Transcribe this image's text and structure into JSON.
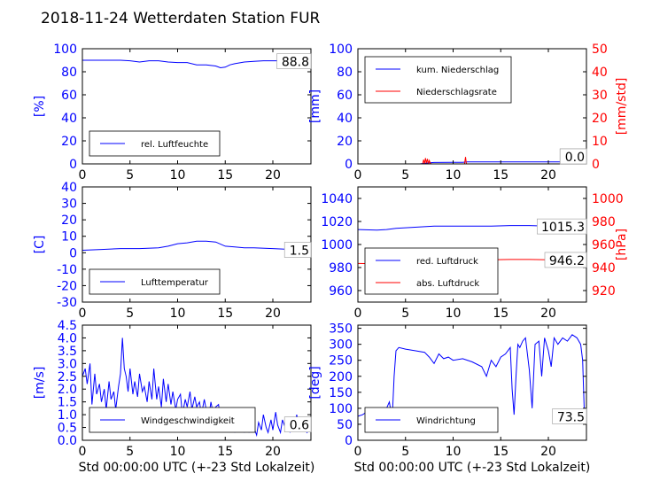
{
  "title": "2018-11-24 Wetterdaten Station FUR",
  "colors": {
    "primary": "#0000ff",
    "secondary": "#ff0000",
    "frame": "#000000"
  },
  "chart_data": [
    {
      "id": "humidity",
      "type": "line",
      "ylabel": "[%]",
      "xlabel": "",
      "xlim": [
        0,
        24
      ],
      "ylim": [
        0,
        100
      ],
      "xticks": [
        0,
        5,
        10,
        15,
        20
      ],
      "yticks": [
        0,
        20,
        40,
        60,
        80,
        100
      ],
      "last_value": "88.8",
      "legend": [
        "rel. Luftfeuchte"
      ],
      "series": [
        {
          "name": "rel. Luftfeuchte",
          "color": "#0000ff",
          "axis": "left",
          "x": [
            0,
            2,
            4,
            5,
            6,
            7,
            8,
            9,
            10,
            11,
            12,
            13,
            14,
            14.5,
            15,
            15.5,
            16,
            17,
            18,
            19,
            20,
            21,
            22,
            23,
            24
          ],
          "y": [
            90,
            90,
            90,
            89.5,
            88.5,
            89.5,
            89.5,
            88.5,
            88,
            88,
            86,
            86,
            85,
            83.5,
            84,
            86,
            87,
            88.5,
            89,
            89.5,
            89.5,
            89.5,
            89,
            89,
            88.8
          ]
        }
      ]
    },
    {
      "id": "precipitation",
      "type": "line",
      "ylabel": "[mm]",
      "ylabel_right": "[mm/std]",
      "xlabel": "",
      "xlim": [
        0,
        24
      ],
      "ylim": [
        0,
        100
      ],
      "ylim_right": [
        0,
        50
      ],
      "xticks": [
        0,
        5,
        10,
        15,
        20
      ],
      "yticks": [
        0,
        20,
        40,
        60,
        80,
        100
      ],
      "yticks_right": [
        0,
        10,
        20,
        30,
        40,
        50
      ],
      "last_value": "1.7",
      "last_value_right": "0.0",
      "legend": [
        "kum. Niederschlag",
        "Niederschlagsrate"
      ],
      "series": [
        {
          "name": "kum. Niederschlag",
          "color": "#0000ff",
          "axis": "left",
          "x": [
            0,
            6.5,
            7,
            7.5,
            8,
            11,
            11.5,
            24
          ],
          "y": [
            0,
            0,
            0.6,
            1.0,
            1.2,
            1.4,
            1.7,
            1.7
          ]
        },
        {
          "name": "Niederschlagsrate",
          "color": "#ff0000",
          "axis": "right",
          "x": [
            0,
            6.8,
            6.9,
            7.0,
            7.1,
            7.2,
            7.3,
            7.4,
            7.5,
            7.6,
            7.7,
            11.2,
            11.3,
            11.4,
            24
          ],
          "y": [
            0,
            0,
            1.8,
            0,
            2.5,
            0.3,
            2.2,
            0,
            1.5,
            0.4,
            0,
            0,
            3,
            0,
            0
          ]
        }
      ]
    },
    {
      "id": "temperature",
      "type": "line",
      "ylabel": "[C]",
      "xlabel": "",
      "xlim": [
        0,
        24
      ],
      "ylim": [
        -30,
        40
      ],
      "xticks": [
        0,
        5,
        10,
        15,
        20
      ],
      "yticks": [
        -30,
        -20,
        -10,
        0,
        10,
        20,
        30,
        40
      ],
      "last_value": "1.5",
      "legend": [
        "Lufttemperatur"
      ],
      "series": [
        {
          "name": "Lufttemperatur",
          "color": "#0000ff",
          "axis": "left",
          "x": [
            0,
            2,
            4,
            6,
            8,
            9,
            10,
            11,
            12,
            13,
            14,
            15,
            16,
            17,
            18,
            20,
            22,
            24
          ],
          "y": [
            1.5,
            2,
            2.5,
            2.5,
            3,
            4,
            5.5,
            6,
            7,
            7,
            6.5,
            4,
            3.5,
            3,
            3,
            2.5,
            2,
            1.5
          ]
        }
      ]
    },
    {
      "id": "pressure",
      "type": "line",
      "ylabel": "",
      "ylabel_right": "[hPa]",
      "xlabel": "",
      "xlim": [
        0,
        24
      ],
      "ylim": [
        950,
        1050
      ],
      "ylim_right": [
        910,
        1010
      ],
      "xticks": [
        0,
        5,
        10,
        15,
        20
      ],
      "yticks": [
        960,
        980,
        1000,
        1020,
        1040
      ],
      "yticks_right": [
        920,
        940,
        960,
        980,
        1000
      ],
      "last_value": "1015.3",
      "last_value_right": "946.2",
      "legend": [
        "red. Luftdruck",
        "abs. Luftdruck"
      ],
      "series": [
        {
          "name": "red. Luftdruck",
          "color": "#0000ff",
          "axis": "left",
          "x": [
            0,
            2,
            3,
            4,
            6,
            8,
            10,
            12,
            14,
            16,
            18,
            20,
            22,
            24
          ],
          "y": [
            1013,
            1012.5,
            1013,
            1014,
            1015,
            1016,
            1016,
            1016,
            1016,
            1016.5,
            1016.5,
            1016,
            1015.5,
            1015.3
          ]
        },
        {
          "name": "abs. Luftdruck",
          "color": "#ff0000",
          "axis": "right",
          "x": [
            0,
            2,
            3,
            4,
            6,
            8,
            10,
            12,
            14,
            16,
            18,
            20,
            22,
            24
          ],
          "y": [
            943.5,
            943.3,
            943.8,
            944.5,
            945.5,
            946.5,
            946.8,
            946.8,
            946.8,
            947,
            947,
            946.8,
            946.5,
            946.2
          ]
        }
      ]
    },
    {
      "id": "wind_speed",
      "type": "line",
      "ylabel": "[m/s]",
      "xlabel": "Std 00:00:00 UTC (+-23 Std Lokalzeit)",
      "xlim": [
        0,
        24
      ],
      "ylim": [
        0,
        4.5
      ],
      "xticks": [
        0,
        5,
        10,
        15,
        20
      ],
      "yticks": [
        0.0,
        0.5,
        1.0,
        1.5,
        2.0,
        2.5,
        3.0,
        3.5,
        4.0,
        4.5
      ],
      "last_value": "0.6",
      "legend": [
        "Windgeschwindigkeit"
      ],
      "series": [
        {
          "name": "Windgeschwindigkeit",
          "color": "#0000ff",
          "axis": "left",
          "x": [
            0,
            0.3,
            0.5,
            0.8,
            1.0,
            1.3,
            1.5,
            1.8,
            2.0,
            2.3,
            2.5,
            2.8,
            3.0,
            3.3,
            3.5,
            3.8,
            4.0,
            4.2,
            4.4,
            4.6,
            4.8,
            5.0,
            5.3,
            5.5,
            5.8,
            6.0,
            6.3,
            6.5,
            6.8,
            7.0,
            7.3,
            7.5,
            7.8,
            8.0,
            8.3,
            8.5,
            8.8,
            9.0,
            9.3,
            9.5,
            9.8,
            10.0,
            10.3,
            10.5,
            10.8,
            11.0,
            11.3,
            11.5,
            11.8,
            12.0,
            12.3,
            12.5,
            12.8,
            13.0,
            13.3,
            13.5,
            13.8,
            14.0,
            14.3,
            14.5,
            14.8,
            15.0,
            15.3,
            15.5,
            15.8,
            16.0,
            16.3,
            16.5,
            16.8,
            17.0,
            17.3,
            17.5,
            17.8,
            18.0,
            18.3,
            18.5,
            18.8,
            19.0,
            19.3,
            19.5,
            19.8,
            20.0,
            20.3,
            20.5,
            20.8,
            21.0,
            21.3,
            21.5,
            21.8,
            22.0,
            22.3,
            22.5,
            22.8,
            23.0,
            23.3,
            23.6,
            24.0
          ],
          "y": [
            2.5,
            2.8,
            2.2,
            3.0,
            1.4,
            2.6,
            1.8,
            2.2,
            1.5,
            2.0,
            1.2,
            2.3,
            1.6,
            1.9,
            1.2,
            2.1,
            2.6,
            4.0,
            2.8,
            2.5,
            1.9,
            2.8,
            1.8,
            2.3,
            1.7,
            2.6,
            1.9,
            2.1,
            1.5,
            2.3,
            1.6,
            2.8,
            1.6,
            2.1,
            1.3,
            2.4,
            1.5,
            2.2,
            1.4,
            1.9,
            1.2,
            1.6,
            1.8,
            1.0,
            1.6,
            1.3,
            1.9,
            1.2,
            1.7,
            1.3,
            1.5,
            1.0,
            1.6,
            1.2,
            1.0,
            1.5,
            0.9,
            1.3,
            1.4,
            0.8,
            1.2,
            0.6,
            1.1,
            0.7,
            0.9,
            0.3,
            0.8,
            0.5,
            0.9,
            0.3,
            0.6,
            0.3,
            0.9,
            0.5,
            0.2,
            0.7,
            0.4,
            1.0,
            0.5,
            0.3,
            0.8,
            0.4,
            1.1,
            0.6,
            0.3,
            0.8,
            0.5,
            0.9,
            0.3,
            0.7,
            0.4,
            1.0,
            0.5,
            0.8,
            0.4,
            0.3,
            0.6
          ]
        }
      ]
    },
    {
      "id": "wind_direction",
      "type": "line",
      "ylabel": "[deg]",
      "xlabel": "Std 00:00:00 UTC (+-23 Std Lokalzeit)",
      "xlim": [
        0,
        24
      ],
      "ylim": [
        0,
        360
      ],
      "xticks": [
        0,
        5,
        10,
        15,
        20
      ],
      "yticks": [
        0,
        50,
        100,
        150,
        200,
        250,
        300,
        350
      ],
      "last_value": "73.5",
      "legend": [
        "Windrichtung"
      ],
      "series": [
        {
          "name": "Windrichtung",
          "color": "#0000ff",
          "axis": "left",
          "x": [
            0,
            0.5,
            1.0,
            1.5,
            2.0,
            2.5,
            3.0,
            3.3,
            3.6,
            3.8,
            4.0,
            4.3,
            5.0,
            6.0,
            7.0,
            7.5,
            8.0,
            8.5,
            9.0,
            9.5,
            10.0,
            11.0,
            12.0,
            13.0,
            13.5,
            14.0,
            14.5,
            15.0,
            15.5,
            16.0,
            16.2,
            16.4,
            16.6,
            16.8,
            17.0,
            17.3,
            17.6,
            18.0,
            18.3,
            18.6,
            19.0,
            19.3,
            19.6,
            20.0,
            20.3,
            20.6,
            21.0,
            21.5,
            22.0,
            22.5,
            23.0,
            23.4,
            23.6,
            23.8,
            24.0
          ],
          "y": [
            75,
            80,
            90,
            70,
            95,
            85,
            100,
            120,
            65,
            200,
            280,
            290,
            285,
            280,
            275,
            260,
            240,
            270,
            255,
            260,
            250,
            255,
            245,
            230,
            200,
            250,
            230,
            260,
            270,
            290,
            160,
            80,
            200,
            300,
            290,
            310,
            320,
            220,
            100,
            300,
            310,
            200,
            320,
            280,
            230,
            320,
            300,
            320,
            310,
            330,
            320,
            300,
            250,
            60,
            73.5
          ]
        }
      ]
    }
  ]
}
